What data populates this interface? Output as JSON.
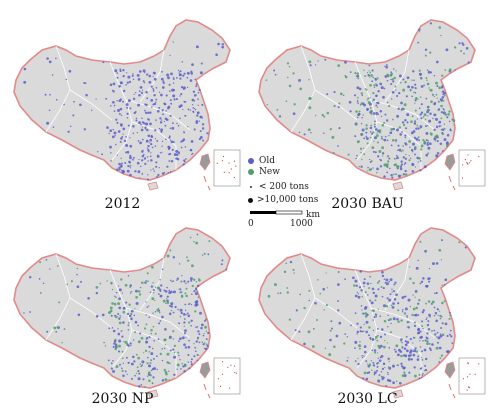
{
  "panels": [
    {
      "id": "2012",
      "label": "2012",
      "old": 420,
      "new": 0
    },
    {
      "id": "2030-bau",
      "label": "2030 BAU",
      "old": 330,
      "new": 210
    },
    {
      "id": "2030-np",
      "label": "2030 NP",
      "old": 280,
      "new": 150
    },
    {
      "id": "2030-lc",
      "label": "2030 LC",
      "old": 310,
      "new": 130
    }
  ],
  "legend": {
    "old_label": "Old",
    "new_label": "New",
    "small_label": "< 200 tons",
    "large_label": ">10,000 tons",
    "old_color": "#5a5fc8",
    "new_color": "#4fa06e"
  },
  "scale": {
    "unit": "km",
    "start": "0",
    "end": "1000"
  },
  "colors": {
    "land": "#dadada",
    "border": "#e28a8a",
    "internal": "#ffffff"
  }
}
